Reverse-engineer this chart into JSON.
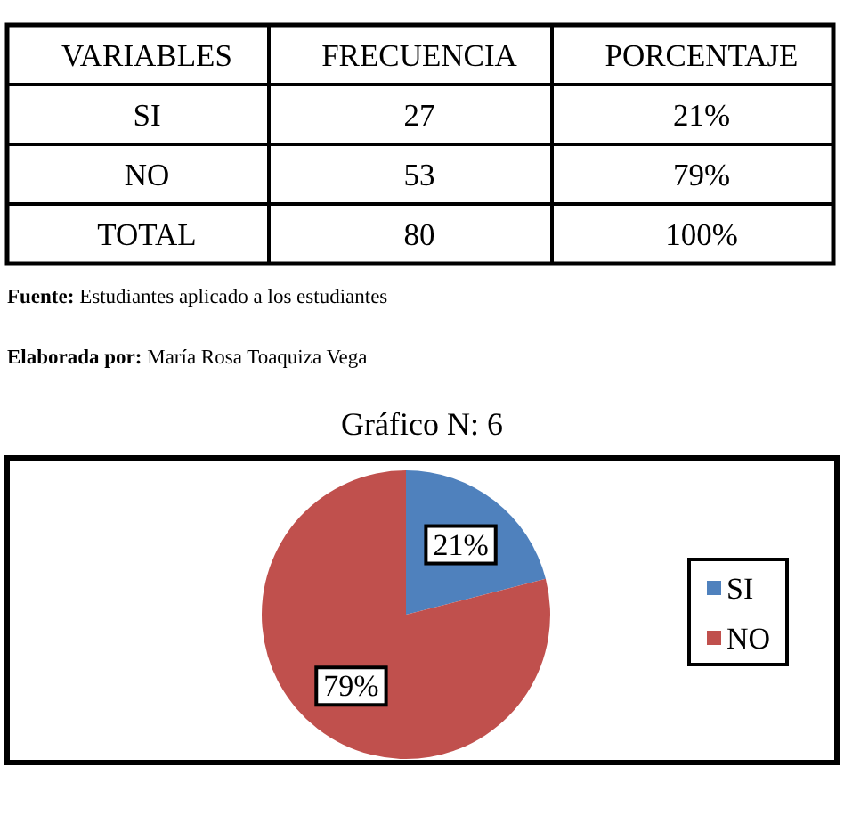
{
  "chart_data": [
    {
      "type": "other",
      "xlabel": "VARIABLES",
      "categories": [
        "SI",
        "NO",
        "TOTAL"
      ],
      "data_labels": true,
      "series": [
        {
          "name": "FRECUENCIA",
          "values": [
            27,
            53,
            80
          ]
        },
        {
          "name": "PORCENTAJE",
          "values": [
            21,
            79,
            100
          ],
          "value_labels": [
            "21%",
            "79%",
            "100%"
          ]
        }
      ],
      "annotations": [
        "Fuente: Estudiantes aplicado a los estudiantes",
        "Elaborada por: María Rosa Toaquiza Vega"
      ]
    },
    {
      "type": "pie",
      "title": "Gráfico N: 6",
      "categories": [
        "SI",
        "NO"
      ],
      "values": [
        21,
        79
      ],
      "colors": [
        "#4f81bd",
        "#c0504d"
      ],
      "value_labels": [
        "21%",
        "79%"
      ],
      "legend": "right"
    }
  ]
}
